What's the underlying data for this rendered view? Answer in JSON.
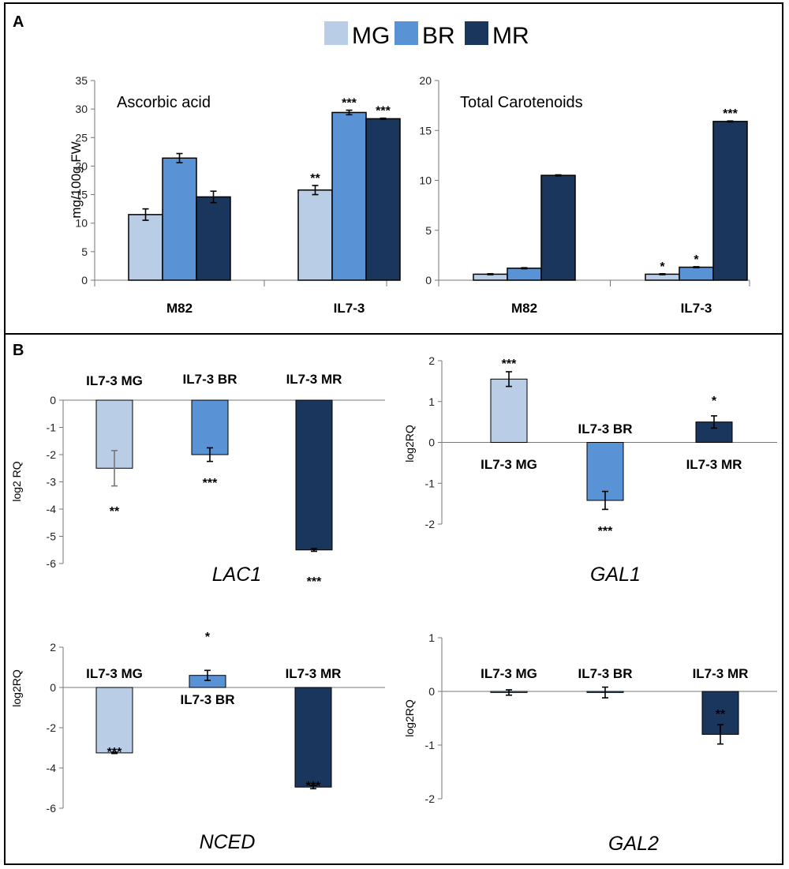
{
  "panels": {
    "a_label": "A",
    "b_label": "B"
  },
  "legend": [
    {
      "name": "MG",
      "color": "#b9cde6"
    },
    {
      "name": "BR",
      "color": "#5a93d5"
    },
    {
      "name": "MR",
      "color": "#1b365d"
    }
  ],
  "chart_data": [
    {
      "id": "ascorbic",
      "type": "bar",
      "title": "Ascorbic acid",
      "ylabel": "mg/100g FW",
      "ylim": [
        0,
        35
      ],
      "yticks": [
        0,
        5,
        10,
        15,
        20,
        25,
        30,
        35
      ],
      "categories": [
        "M82",
        "IL7-3"
      ],
      "series": [
        {
          "name": "MG",
          "values": [
            11.5,
            15.8
          ],
          "errors": [
            1.0,
            0.8
          ],
          "sig": [
            "",
            "**"
          ]
        },
        {
          "name": "BR",
          "values": [
            21.4,
            29.4
          ],
          "errors": [
            0.8,
            0.4
          ],
          "sig": [
            "",
            "***"
          ]
        },
        {
          "name": "MR",
          "values": [
            14.6,
            28.3
          ],
          "errors": [
            1.0,
            0.1
          ],
          "sig": [
            "",
            "***"
          ]
        }
      ]
    },
    {
      "id": "carotenoids",
      "type": "bar",
      "title": "Total Carotenoids",
      "ylabel": "",
      "ylim": [
        0,
        20
      ],
      "yticks": [
        0,
        5,
        10,
        15,
        20
      ],
      "categories": [
        "M82",
        "IL7-3"
      ],
      "series": [
        {
          "name": "MG",
          "values": [
            0.6,
            0.6
          ],
          "errors": [
            0.05,
            0.05
          ],
          "sig": [
            "",
            "*"
          ]
        },
        {
          "name": "BR",
          "values": [
            1.2,
            1.3
          ],
          "errors": [
            0.05,
            0.05
          ],
          "sig": [
            "",
            "*"
          ]
        },
        {
          "name": "MR",
          "values": [
            10.5,
            15.9
          ],
          "errors": [
            0.05,
            0.05
          ],
          "sig": [
            "",
            "***"
          ]
        }
      ]
    },
    {
      "id": "lac1",
      "type": "bar",
      "gene": "LAC1",
      "ylabel": "log2 RQ",
      "ylim": [
        -6,
        0
      ],
      "yticks": [
        0,
        -1,
        -2,
        -3,
        -4,
        -5,
        -6
      ],
      "categories": [
        "IL7-3 MG",
        "IL7-3 BR",
        "IL7-3 MR"
      ],
      "values": [
        -2.5,
        -2.0,
        -5.5
      ],
      "errors": [
        0.65,
        0.25,
        0.05
      ],
      "sig": [
        "**",
        "***",
        "***"
      ]
    },
    {
      "id": "gal1",
      "type": "bar",
      "gene": "GAL1",
      "ylabel": "log2RQ",
      "ylim": [
        -2,
        2
      ],
      "yticks": [
        2,
        1,
        0,
        -1,
        -2
      ],
      "categories": [
        "IL7-3 MG",
        "IL7-3 BR",
        "IL7-3 MR"
      ],
      "values": [
        1.55,
        -1.42,
        0.5
      ],
      "errors": [
        0.18,
        0.22,
        0.15
      ],
      "sig": [
        "***",
        "***",
        "*"
      ]
    },
    {
      "id": "nced",
      "type": "bar",
      "gene": "NCED",
      "ylabel": "log2RQ",
      "ylim": [
        -6,
        2
      ],
      "yticks": [
        2,
        0,
        -2,
        -4,
        -6
      ],
      "categories": [
        "IL7-3 MG",
        "IL7-3 BR",
        "IL7-3 MR"
      ],
      "values": [
        -3.25,
        0.6,
        -4.95
      ],
      "errors": [
        0.03,
        0.25,
        0.08
      ],
      "sig": [
        "***",
        "*",
        "***"
      ]
    },
    {
      "id": "gal2",
      "type": "bar",
      "gene": "GAL2",
      "ylabel": "log2RQ",
      "ylim": [
        -2,
        1
      ],
      "yticks": [
        1,
        0,
        -1,
        -2
      ],
      "categories": [
        "IL7-3 MG",
        "IL7-3 BR",
        "IL7-3 MR"
      ],
      "values": [
        -0.02,
        -0.02,
        -0.8
      ],
      "errors": [
        0.05,
        0.1,
        0.18
      ],
      "sig": [
        "",
        "",
        "**"
      ]
    }
  ]
}
